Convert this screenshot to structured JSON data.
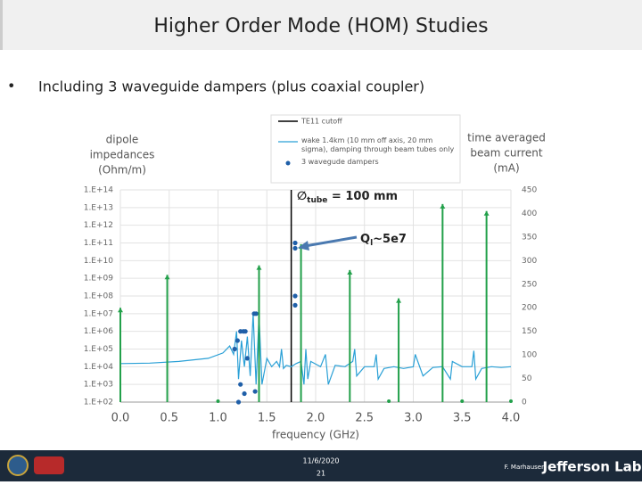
{
  "slide": {
    "title": "Higher Order Mode (HOM) Studies",
    "bullet": "Including 3 waveguide dampers (plus coaxial coupler)",
    "footer": {
      "date": "11/6/2020",
      "page": "21",
      "author": "F. Marhauser",
      "lab": "Jefferson Lab"
    }
  },
  "chart_data": {
    "type": "line",
    "yscale": "log",
    "grid": true,
    "legend": "top",
    "xlabel": "frequency (GHz)",
    "ylabel": [
      "dipole",
      "impedances",
      "(Ohm/m)"
    ],
    "y2label": [
      "time averaged",
      "beam current",
      "(mA)"
    ],
    "xlim": [
      0,
      4
    ],
    "xticks": [
      {
        "value": 0,
        "label": "0.0"
      },
      {
        "value": 0.5,
        "label": "0.5"
      },
      {
        "value": 1,
        "label": "1.0"
      },
      {
        "value": 1.5,
        "label": "1.5"
      },
      {
        "value": 2,
        "label": "2.0"
      },
      {
        "value": 2.5,
        "label": "2.5"
      },
      {
        "value": 3,
        "label": "3.0"
      },
      {
        "value": 3.5,
        "label": "3.5"
      },
      {
        "value": 4,
        "label": "4.0"
      }
    ],
    "ylim": [
      100,
      100000000000000
    ],
    "yticks": [
      {
        "value": 100,
        "label": "1.E+02"
      },
      {
        "value": 1000,
        "label": "1.E+03"
      },
      {
        "value": 10000,
        "label": "1.E+04"
      },
      {
        "value": 100000,
        "label": "1.E+05"
      },
      {
        "value": 1000000,
        "label": "1.E+06"
      },
      {
        "value": 10000000,
        "label": "1.E+07"
      },
      {
        "value": 100000000,
        "label": "1.E+08"
      },
      {
        "value": 1000000000,
        "label": "1.E+09"
      },
      {
        "value": 10000000000,
        "label": "1.E+10"
      },
      {
        "value": 100000000000,
        "label": "1.E+11"
      },
      {
        "value": 1000000000000,
        "label": "1.E+12"
      },
      {
        "value": 10000000000000,
        "label": "1.E+13"
      },
      {
        "value": 100000000000000,
        "label": "1.E+14"
      }
    ],
    "y2lim": [
      0,
      450
    ],
    "y2ticks": [
      0,
      50,
      100,
      150,
      200,
      250,
      300,
      350,
      400,
      450
    ],
    "cutoff": {
      "name": "TE11 cutoff",
      "x": 1.75,
      "color": "#000000"
    },
    "series": [
      {
        "name": "wake 1.4km (10 mm off axis, 20 mm sigma), damping through beam tubes only",
        "color": "#2aa0d6",
        "x": [
          0,
          0.3,
          0.6,
          0.9,
          1.05,
          1.12,
          1.16,
          1.19,
          1.21,
          1.24,
          1.27,
          1.3,
          1.33,
          1.36,
          1.39,
          1.42,
          1.45,
          1.5,
          1.55,
          1.6,
          1.63,
          1.65,
          1.67,
          1.7,
          1.75,
          1.8,
          1.85,
          1.88,
          1.9,
          1.92,
          1.95,
          2.05,
          2.1,
          2.13,
          2.2,
          2.3,
          2.38,
          2.4,
          2.42,
          2.5,
          2.6,
          2.62,
          2.64,
          2.7,
          2.8,
          2.9,
          3.0,
          3.02,
          3.1,
          3.2,
          3.3,
          3.38,
          3.4,
          3.5,
          3.6,
          3.62,
          3.64,
          3.7,
          3.8,
          3.9,
          4.0
        ],
        "values": [
          15000,
          16000,
          20000,
          30000,
          60000,
          150000,
          50000,
          1000000,
          2000,
          300000,
          10000,
          500000,
          3000,
          10000000,
          1000,
          8000000,
          1000,
          30000,
          10000,
          20000,
          10000,
          100000,
          8000,
          12000,
          10000,
          15000,
          20000,
          1000,
          100000,
          2000,
          20000,
          10000,
          50000,
          1000,
          12000,
          10000,
          20000,
          100000,
          3000,
          10000,
          10000,
          50000,
          2000,
          8000,
          10000,
          8000,
          10000,
          50000,
          3000,
          9000,
          10000,
          2000,
          20000,
          10000,
          10000,
          80000,
          2000,
          8000,
          10000,
          9000,
          10000
        ]
      },
      {
        "name": "3 wavegude dampers",
        "color": "#1f5fa8",
        "marker": "dot",
        "x": [
          1.17,
          1.2,
          1.23,
          1.26,
          1.28,
          1.3,
          1.37,
          1.39,
          1.23,
          1.21,
          1.27,
          1.38,
          1.79,
          1.79,
          1.79,
          1.79
        ],
        "values": [
          100000,
          300000,
          1000000,
          1000000,
          1000000,
          30000,
          10000000,
          10000000,
          1000,
          100,
          300,
          400,
          100000000000,
          50000000000,
          100000000,
          30000000
        ]
      },
      {
        "color": "#22a04a",
        "axis": "y2",
        "marker": "stem",
        "x": [
          0,
          0.48,
          1.0,
          1.42,
          1.85,
          2.35,
          2.75,
          2.85,
          3.3,
          3.5,
          3.75,
          4.0
        ],
        "values": [
          200,
          270,
          0,
          290,
          335,
          280,
          0,
          220,
          420,
          0,
          405,
          0
        ]
      }
    ],
    "annotations": [
      {
        "parts": [
          "∅",
          "tube",
          " = 100 mm"
        ]
      },
      {
        "parts": [
          "Q",
          "l",
          "~5e7"
        ]
      }
    ]
  }
}
